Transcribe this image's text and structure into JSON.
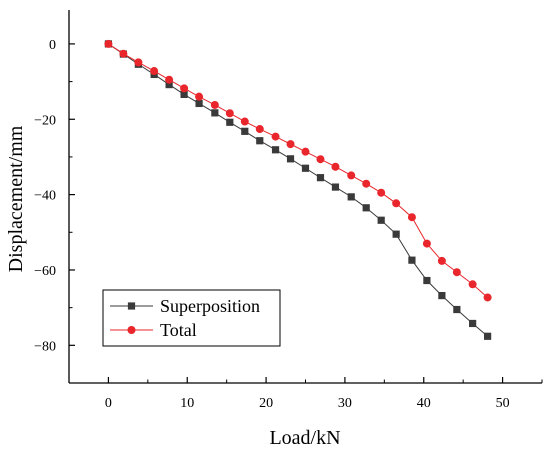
{
  "chart_data": {
    "type": "line",
    "title": "",
    "xlabel": "Load/kN",
    "ylabel": "Displacement/mm",
    "xlim": [
      -5,
      55
    ],
    "ylim": [
      -90,
      9
    ],
    "xticks": [
      0,
      10,
      20,
      30,
      40,
      50
    ],
    "yticks": [
      0,
      -20,
      -40,
      -60,
      -80
    ],
    "grid": false,
    "legend_position": "bottom-left",
    "series": [
      {
        "name": "Superposition",
        "color": "#3a3a3a",
        "marker": "square",
        "x": [
          0,
          1.9,
          3.8,
          5.8,
          7.7,
          9.6,
          11.5,
          13.5,
          15.4,
          17.3,
          19.2,
          21.2,
          23.1,
          25.0,
          26.9,
          28.8,
          30.8,
          32.7,
          34.6,
          36.5,
          38.5,
          40.4,
          42.3,
          44.2,
          46.2,
          48.1
        ],
        "y": [
          0,
          -2.7,
          -5.4,
          -8.1,
          -10.8,
          -13.4,
          -15.8,
          -18.3,
          -20.8,
          -23.2,
          -25.7,
          -28.1,
          -30.5,
          -33.0,
          -35.5,
          -38.0,
          -40.6,
          -43.5,
          -46.8,
          -50.5,
          -57.4,
          -62.8,
          -66.8,
          -70.5,
          -74.2,
          -77.6
        ]
      },
      {
        "name": "Total",
        "color": "#e8262b",
        "marker": "circle",
        "x": [
          0,
          1.9,
          3.8,
          5.8,
          7.7,
          9.6,
          11.5,
          13.5,
          15.4,
          17.3,
          19.2,
          21.2,
          23.1,
          25.0,
          26.9,
          28.8,
          30.8,
          32.7,
          34.6,
          36.5,
          38.5,
          40.4,
          42.3,
          44.2,
          46.2,
          48.1
        ],
        "y": [
          0,
          -2.6,
          -4.9,
          -7.2,
          -9.5,
          -11.8,
          -14.0,
          -16.2,
          -18.4,
          -20.6,
          -22.6,
          -24.6,
          -26.6,
          -28.6,
          -30.6,
          -32.6,
          -34.9,
          -37.1,
          -39.5,
          -42.3,
          -46.0,
          -53.0,
          -57.6,
          -60.6,
          -63.8,
          -67.3
        ]
      }
    ]
  }
}
